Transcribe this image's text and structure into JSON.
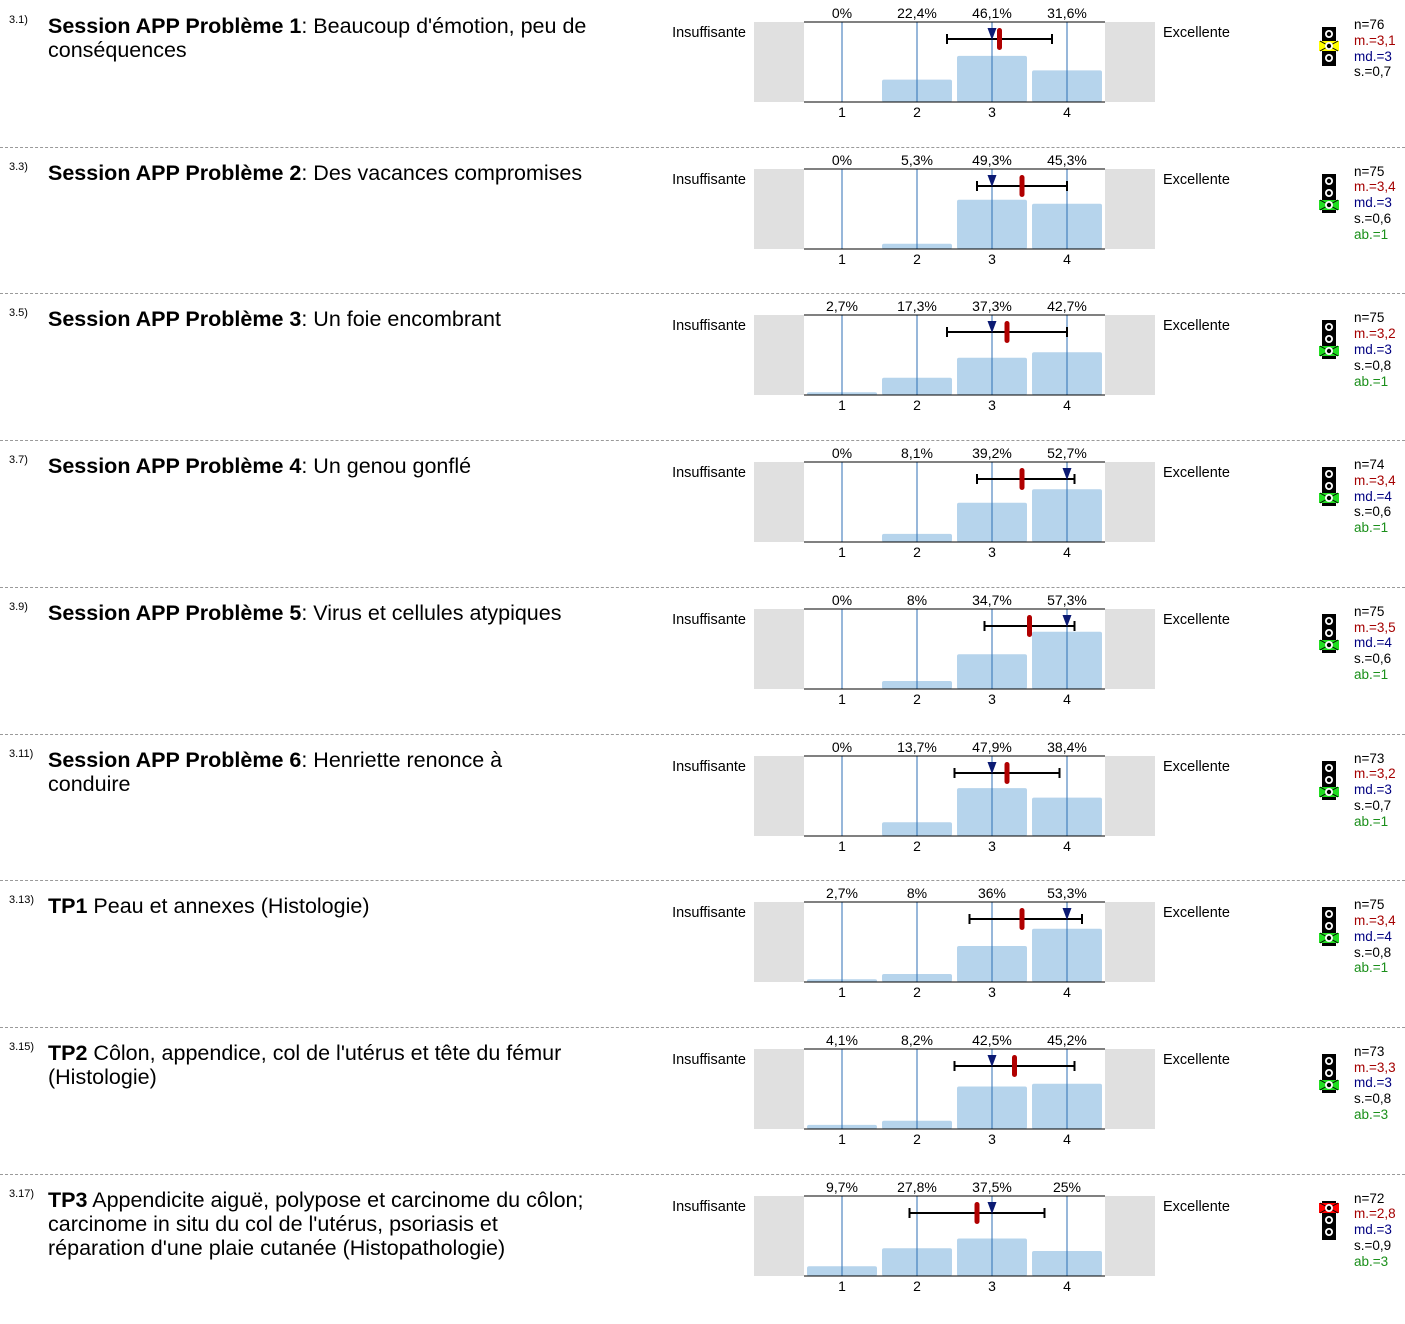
{
  "chart_data": {
    "type": "bar",
    "categories": [
      "1",
      "2",
      "3",
      "4"
    ],
    "left_label": "Insuffisante",
    "right_label": "Excellente",
    "questions": [
      {
        "number": "3.1)",
        "title_bold": "Session APP Problème 1",
        "title_rest": ": Beaucoup d'émotion, peu de conséquences",
        "percent_labels": [
          "0%",
          "22,4%",
          "46,1%",
          "31,6%"
        ],
        "values": [
          0,
          22.4,
          46.1,
          31.6
        ],
        "mean": 3.1,
        "median": 3,
        "sd": 0.7,
        "whisker": [
          2.4,
          3.8
        ],
        "stats": {
          "n": "n=76",
          "m": "m.=3,1",
          "md": "md.=3",
          "s": "s.=0,7",
          "ab": ""
        },
        "light": "yellow"
      },
      {
        "number": "3.3)",
        "title_bold": "Session APP Problème 2",
        "title_rest": ": Des vacances compromises",
        "percent_labels": [
          "0%",
          "5,3%",
          "49,3%",
          "45,3%"
        ],
        "values": [
          0,
          5.3,
          49.3,
          45.3
        ],
        "mean": 3.4,
        "median": 3,
        "sd": 0.6,
        "whisker": [
          2.8,
          4.0
        ],
        "stats": {
          "n": "n=75",
          "m": "m.=3,4",
          "md": "md.=3",
          "s": "s.=0,6",
          "ab": "ab.=1"
        },
        "light": "green"
      },
      {
        "number": "3.5)",
        "title_bold": "Session APP Problème 3",
        "title_rest": ": Un foie encombrant",
        "percent_labels": [
          "2,7%",
          "17,3%",
          "37,3%",
          "42,7%"
        ],
        "values": [
          2.7,
          17.3,
          37.3,
          42.7
        ],
        "mean": 3.2,
        "median": 3,
        "sd": 0.8,
        "whisker": [
          2.4,
          4.0
        ],
        "stats": {
          "n": "n=75",
          "m": "m.=3,2",
          "md": "md.=3",
          "s": "s.=0,8",
          "ab": "ab.=1"
        },
        "light": "green"
      },
      {
        "number": "3.7)",
        "title_bold": "Session APP Problème 4",
        "title_rest": ": Un genou gonflé",
        "percent_labels": [
          "0%",
          "8,1%",
          "39,2%",
          "52,7%"
        ],
        "values": [
          0,
          8.1,
          39.2,
          52.7
        ],
        "mean": 3.4,
        "median": 4,
        "sd": 0.6,
        "whisker": [
          2.8,
          4.1
        ],
        "stats": {
          "n": "n=74",
          "m": "m.=3,4",
          "md": "md.=4",
          "s": "s.=0,6",
          "ab": "ab.=1"
        },
        "light": "green"
      },
      {
        "number": "3.9)",
        "title_bold": "Session APP Problème 5",
        "title_rest": ": Virus et cellules atypiques",
        "percent_labels": [
          "0%",
          "8%",
          "34,7%",
          "57,3%"
        ],
        "values": [
          0,
          8,
          34.7,
          57.3
        ],
        "mean": 3.5,
        "median": 4,
        "sd": 0.6,
        "whisker": [
          2.9,
          4.1
        ],
        "stats": {
          "n": "n=75",
          "m": "m.=3,5",
          "md": "md.=4",
          "s": "s.=0,6",
          "ab": "ab.=1"
        },
        "light": "green"
      },
      {
        "number": "3.11)",
        "title_bold": "Session APP Problème 6",
        "title_rest": ": Henriette renonce à conduire",
        "percent_labels": [
          "0%",
          "13,7%",
          "47,9%",
          "38,4%"
        ],
        "values": [
          0,
          13.7,
          47.9,
          38.4
        ],
        "mean": 3.2,
        "median": 3,
        "sd": 0.7,
        "whisker": [
          2.5,
          3.9
        ],
        "stats": {
          "n": "n=73",
          "m": "m.=3,2",
          "md": "md.=3",
          "s": "s.=0,7",
          "ab": "ab.=1"
        },
        "light": "green"
      },
      {
        "number": "3.13)",
        "title_bold": "TP1",
        "title_rest": " Peau et annexes (Histologie)",
        "percent_labels": [
          "2,7%",
          "8%",
          "36%",
          "53,3%"
        ],
        "values": [
          2.7,
          8,
          36,
          53.3
        ],
        "mean": 3.4,
        "median": 4,
        "sd": 0.8,
        "whisker": [
          2.7,
          4.2
        ],
        "stats": {
          "n": "n=75",
          "m": "m.=3,4",
          "md": "md.=4",
          "s": "s.=0,8",
          "ab": "ab.=1"
        },
        "light": "green"
      },
      {
        "number": "3.15)",
        "title_bold": "TP2",
        "title_rest": " Côlon, appendice, col de l'utérus et tête du fémur (Histologie)",
        "percent_labels": [
          "4,1%",
          "8,2%",
          "42,5%",
          "45,2%"
        ],
        "values": [
          4.1,
          8.2,
          42.5,
          45.2
        ],
        "mean": 3.3,
        "median": 3,
        "sd": 0.8,
        "whisker": [
          2.5,
          4.1
        ],
        "stats": {
          "n": "n=73",
          "m": "m.=3,3",
          "md": "md.=3",
          "s": "s.=0,8",
          "ab": "ab.=3"
        },
        "light": "green"
      },
      {
        "number": "3.17)",
        "title_bold": "TP3",
        "title_rest": " Appendicite aiguë, polypose et carcinome du côlon; carcinome in situ du col de l'utérus, psoriasis et réparation d'une plaie cutanée (Histopathologie)",
        "percent_labels": [
          "9,7%",
          "27,8%",
          "37,5%",
          "25%"
        ],
        "values": [
          9.7,
          27.8,
          37.5,
          25
        ],
        "mean": 2.8,
        "median": 3,
        "sd": 0.9,
        "whisker": [
          1.9,
          3.7
        ],
        "stats": {
          "n": "n=72",
          "m": "m.=2,8",
          "md": "md.=3",
          "s": "s.=0,9",
          "ab": "ab.=3"
        },
        "light": "red"
      }
    ]
  },
  "colors": {
    "bar": "#b6d4ec",
    "grid": "#2f6fb4",
    "side_box": "#e0e0e0",
    "mean_marker": "#b00000",
    "median_marker": "#0b1a73",
    "light_yellow": "#ffff00",
    "light_green": "#22dd22",
    "light_red": "#ff0000"
  }
}
